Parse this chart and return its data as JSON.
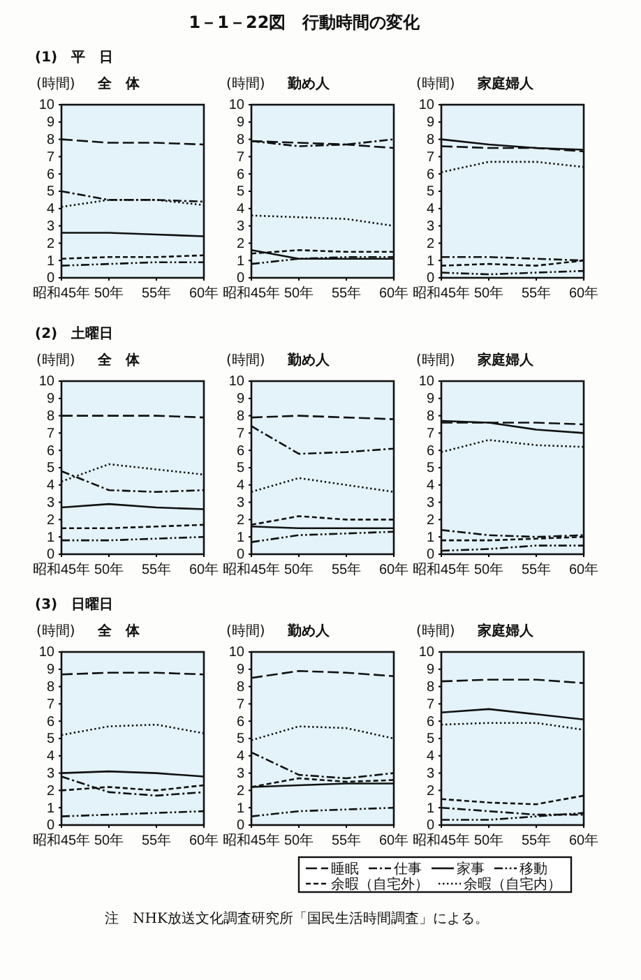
{
  "chart_data": [
    {
      "type": "line",
      "title": "全　体",
      "subtitle": "(1)　平　日",
      "ylabel": "(時間)",
      "annotations": [
        "1－1－22図　行動時間の変化"
      ],
      "categories": [
        "昭和45年",
        "50年",
        "55年",
        "60年"
      ],
      "ylim": [
        0,
        10
      ],
      "yticks": [
        0,
        1,
        2,
        3,
        4,
        5,
        6,
        7,
        8,
        9,
        10
      ],
      "series": [
        {
          "color": "#111111",
          "line_style": "longdash",
          "values": [
            8.0,
            7.8,
            7.8,
            7.7
          ]
        },
        {
          "color": "#111111",
          "line_style": "dashdot",
          "values": [
            5.0,
            4.5,
            4.5,
            4.4
          ]
        },
        {
          "color": "#111111",
          "line_style": "solid",
          "values": [
            2.6,
            2.6,
            2.5,
            2.4
          ]
        },
        {
          "color": "#111111",
          "line_style": "dashdotdot",
          "values": [
            0.7,
            0.8,
            0.9,
            0.9
          ]
        },
        {
          "color": "#111111",
          "line_style": "dashed",
          "values": [
            1.1,
            1.2,
            1.2,
            1.3
          ]
        },
        {
          "color": "#111111",
          "line_style": "dotted",
          "values": [
            4.1,
            4.5,
            4.5,
            4.2
          ]
        }
      ]
    },
    {
      "type": "line",
      "title": "勤め人",
      "ylabel": "(時間)",
      "categories": [
        "昭和45年",
        "50年",
        "55年",
        "60年"
      ],
      "ylim": [
        0,
        10
      ],
      "yticks": [
        0,
        1,
        2,
        3,
        4,
        5,
        6,
        7,
        8,
        9,
        10
      ],
      "series": [
        {
          "color": "#111111",
          "line_style": "longdash",
          "values": [
            7.9,
            7.8,
            7.7,
            7.5
          ]
        },
        {
          "color": "#111111",
          "line_style": "dashdot",
          "values": [
            7.9,
            7.6,
            7.7,
            8.0
          ]
        },
        {
          "color": "#111111",
          "line_style": "solid",
          "values": [
            1.6,
            1.1,
            1.1,
            1.1
          ]
        },
        {
          "color": "#111111",
          "line_style": "dashdotdot",
          "values": [
            0.8,
            1.1,
            1.2,
            1.2
          ]
        },
        {
          "color": "#111111",
          "line_style": "dashed",
          "values": [
            1.4,
            1.6,
            1.5,
            1.5
          ]
        },
        {
          "color": "#111111",
          "line_style": "dotted",
          "values": [
            3.6,
            3.5,
            3.4,
            3.0
          ]
        }
      ]
    },
    {
      "type": "line",
      "title": "家庭婦人",
      "ylabel": "(時間)",
      "categories": [
        "昭和45年",
        "50年",
        "55年",
        "60年"
      ],
      "ylim": [
        0,
        10
      ],
      "yticks": [
        0,
        1,
        2,
        3,
        4,
        5,
        6,
        7,
        8,
        9,
        10
      ],
      "series": [
        {
          "color": "#111111",
          "line_style": "longdash",
          "values": [
            7.6,
            7.5,
            7.5,
            7.3
          ]
        },
        {
          "color": "#111111",
          "line_style": "dashdot",
          "values": [
            1.2,
            1.2,
            1.1,
            1.0
          ]
        },
        {
          "color": "#111111",
          "line_style": "solid",
          "values": [
            8.0,
            7.7,
            7.5,
            7.4
          ]
        },
        {
          "color": "#111111",
          "line_style": "dashdotdot",
          "values": [
            0.3,
            0.2,
            0.3,
            0.4
          ]
        },
        {
          "color": "#111111",
          "line_style": "dashed",
          "values": [
            0.7,
            0.8,
            0.7,
            1.0
          ]
        },
        {
          "color": "#111111",
          "line_style": "dotted",
          "values": [
            6.1,
            6.7,
            6.7,
            6.4
          ]
        }
      ]
    },
    {
      "type": "line",
      "title": "全　体",
      "subtitle": "(2)　土曜日",
      "ylabel": "(時間)",
      "categories": [
        "昭和45年",
        "50年",
        "55年",
        "60年"
      ],
      "ylim": [
        0,
        10
      ],
      "yticks": [
        0,
        1,
        2,
        3,
        4,
        5,
        6,
        7,
        8,
        9,
        10
      ],
      "series": [
        {
          "color": "#111111",
          "line_style": "longdash",
          "values": [
            8.0,
            8.0,
            8.0,
            7.9
          ]
        },
        {
          "color": "#111111",
          "line_style": "dashdot",
          "values": [
            4.8,
            3.7,
            3.6,
            3.7
          ]
        },
        {
          "color": "#111111",
          "line_style": "solid",
          "values": [
            2.7,
            2.9,
            2.7,
            2.6
          ]
        },
        {
          "color": "#111111",
          "line_style": "dashdotdot",
          "values": [
            0.8,
            0.8,
            0.9,
            1.0
          ]
        },
        {
          "color": "#111111",
          "line_style": "dashed",
          "values": [
            1.5,
            1.5,
            1.6,
            1.7
          ]
        },
        {
          "color": "#111111",
          "line_style": "dotted",
          "values": [
            4.2,
            5.2,
            4.9,
            4.6
          ]
        }
      ]
    },
    {
      "type": "line",
      "title": "勤め人",
      "ylabel": "(時間)",
      "categories": [
        "昭和45年",
        "50年",
        "55年",
        "60年"
      ],
      "ylim": [
        0,
        10
      ],
      "yticks": [
        0,
        1,
        2,
        3,
        4,
        5,
        6,
        7,
        8,
        9,
        10
      ],
      "series": [
        {
          "color": "#111111",
          "line_style": "longdash",
          "values": [
            7.9,
            8.0,
            7.9,
            7.8
          ]
        },
        {
          "color": "#111111",
          "line_style": "dashdot",
          "values": [
            7.4,
            5.8,
            5.9,
            6.1
          ]
        },
        {
          "color": "#111111",
          "line_style": "solid",
          "values": [
            1.6,
            1.5,
            1.5,
            1.5
          ]
        },
        {
          "color": "#111111",
          "line_style": "dashdotdot",
          "values": [
            0.7,
            1.1,
            1.2,
            1.3
          ]
        },
        {
          "color": "#111111",
          "line_style": "dashed",
          "values": [
            1.7,
            2.2,
            2.0,
            2.0
          ]
        },
        {
          "color": "#111111",
          "line_style": "dotted",
          "values": [
            3.6,
            4.4,
            4.0,
            3.6
          ]
        }
      ]
    },
    {
      "type": "line",
      "title": "家庭婦人",
      "ylabel": "(時間)",
      "categories": [
        "昭和45年",
        "50年",
        "55年",
        "60年"
      ],
      "ylim": [
        0,
        10
      ],
      "yticks": [
        0,
        1,
        2,
        3,
        4,
        5,
        6,
        7,
        8,
        9,
        10
      ],
      "series": [
        {
          "color": "#111111",
          "line_style": "longdash",
          "values": [
            7.6,
            7.6,
            7.6,
            7.5
          ]
        },
        {
          "color": "#111111",
          "line_style": "dashdot",
          "values": [
            1.4,
            1.1,
            1.0,
            1.1
          ]
        },
        {
          "color": "#111111",
          "line_style": "solid",
          "values": [
            7.7,
            7.6,
            7.2,
            7.0
          ]
        },
        {
          "color": "#111111",
          "line_style": "dashdotdot",
          "values": [
            0.2,
            0.3,
            0.5,
            0.5
          ]
        },
        {
          "color": "#111111",
          "line_style": "dashed",
          "values": [
            0.8,
            0.8,
            0.9,
            1.0
          ]
        },
        {
          "color": "#111111",
          "line_style": "dotted",
          "values": [
            5.9,
            6.6,
            6.3,
            6.2
          ]
        }
      ]
    },
    {
      "type": "line",
      "title": "全　体",
      "subtitle": "(3)　日曜日",
      "ylabel": "(時間)",
      "categories": [
        "昭和45年",
        "50年",
        "55年",
        "60年"
      ],
      "ylim": [
        0,
        10
      ],
      "yticks": [
        0,
        1,
        2,
        3,
        4,
        5,
        6,
        7,
        8,
        9,
        10
      ],
      "series": [
        {
          "color": "#111111",
          "line_style": "longdash",
          "values": [
            8.7,
            8.8,
            8.8,
            8.7
          ]
        },
        {
          "color": "#111111",
          "line_style": "dashdot",
          "values": [
            2.8,
            1.9,
            1.7,
            1.9
          ]
        },
        {
          "color": "#111111",
          "line_style": "solid",
          "values": [
            3.0,
            3.1,
            3.0,
            2.8
          ]
        },
        {
          "color": "#111111",
          "line_style": "dashdotdot",
          "values": [
            0.5,
            0.6,
            0.7,
            0.8
          ]
        },
        {
          "color": "#111111",
          "line_style": "dashed",
          "values": [
            2.0,
            2.2,
            2.0,
            2.3
          ]
        },
        {
          "color": "#111111",
          "line_style": "dotted",
          "values": [
            5.2,
            5.7,
            5.8,
            5.3
          ]
        }
      ]
    },
    {
      "type": "line",
      "title": "勤め人",
      "ylabel": "(時間)",
      "categories": [
        "昭和45年",
        "50年",
        "55年",
        "60年"
      ],
      "ylim": [
        0,
        10
      ],
      "yticks": [
        0,
        1,
        2,
        3,
        4,
        5,
        6,
        7,
        8,
        9,
        10
      ],
      "series": [
        {
          "color": "#111111",
          "line_style": "longdash",
          "values": [
            8.5,
            8.9,
            8.8,
            8.6
          ]
        },
        {
          "color": "#111111",
          "line_style": "dashdot",
          "values": [
            4.2,
            2.9,
            2.7,
            3.0
          ]
        },
        {
          "color": "#111111",
          "line_style": "solid",
          "values": [
            2.2,
            2.3,
            2.4,
            2.4
          ]
        },
        {
          "color": "#111111",
          "line_style": "dashdotdot",
          "values": [
            0.5,
            0.8,
            0.9,
            1.0
          ]
        },
        {
          "color": "#111111",
          "line_style": "dashed",
          "values": [
            2.2,
            2.7,
            2.5,
            2.6
          ]
        },
        {
          "color": "#111111",
          "line_style": "dotted",
          "values": [
            4.9,
            5.7,
            5.6,
            5.0
          ]
        }
      ]
    },
    {
      "type": "line",
      "title": "家庭婦人",
      "ylabel": "(時間)",
      "annotations": [
        "注　NHK放送文化調査研究所「国民生活時間調査」による。"
      ],
      "legend": "bottom",
      "categories": [
        "昭和45年",
        "50年",
        "55年",
        "60年"
      ],
      "ylim": [
        0,
        10
      ],
      "yticks": [
        0,
        1,
        2,
        3,
        4,
        5,
        6,
        7,
        8,
        9,
        10
      ],
      "series": [
        {
          "name": "睡眠",
          "color": "#111111",
          "line_style": "longdash",
          "values": [
            8.3,
            8.4,
            8.4,
            8.2
          ]
        },
        {
          "name": "仕事",
          "color": "#111111",
          "line_style": "dashdot",
          "values": [
            1.0,
            0.8,
            0.6,
            0.6
          ]
        },
        {
          "name": "家事",
          "color": "#111111",
          "line_style": "solid",
          "values": [
            6.5,
            6.7,
            6.4,
            6.1
          ]
        },
        {
          "name": "移動",
          "color": "#111111",
          "line_style": "dashdotdot",
          "values": [
            0.3,
            0.3,
            0.5,
            0.7
          ]
        },
        {
          "name": "余暇（自宅外）",
          "color": "#111111",
          "line_style": "dashed",
          "values": [
            1.5,
            1.3,
            1.2,
            1.7
          ]
        },
        {
          "name": "余暇（自宅内）",
          "color": "#111111",
          "line_style": "dotted",
          "values": [
            5.8,
            5.9,
            5.9,
            5.5
          ]
        }
      ]
    }
  ]
}
